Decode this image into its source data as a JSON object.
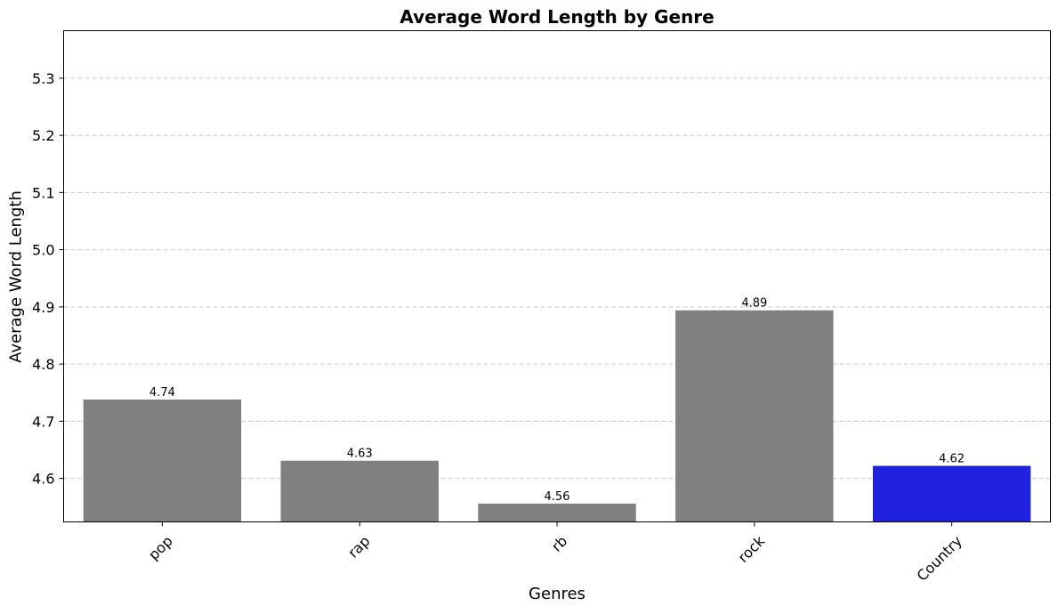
{
  "chart_data": {
    "type": "bar",
    "title": "Average Word Length by Genre",
    "xlabel": "Genres",
    "ylabel": "Average Word Length",
    "categories": [
      "pop",
      "rap",
      "rb",
      "rock",
      "Country"
    ],
    "values": [
      4.738,
      4.631,
      4.556,
      4.894,
      4.622
    ],
    "value_labels": [
      "4.74",
      "4.63",
      "4.56",
      "4.89",
      "4.62"
    ],
    "bar_colors": [
      "#808080",
      "#808080",
      "#808080",
      "#808080",
      "#2121e0"
    ],
    "ylim": [
      4.524,
      5.383
    ],
    "yticks": [
      4.6,
      4.7,
      4.8,
      4.9,
      5.0,
      5.1,
      5.2,
      5.3
    ],
    "ytick_labels": [
      "4.6",
      "4.7",
      "4.8",
      "4.9",
      "5.0",
      "5.1",
      "5.2",
      "5.3"
    ],
    "grid": "y-dashed",
    "legend": "none"
  }
}
